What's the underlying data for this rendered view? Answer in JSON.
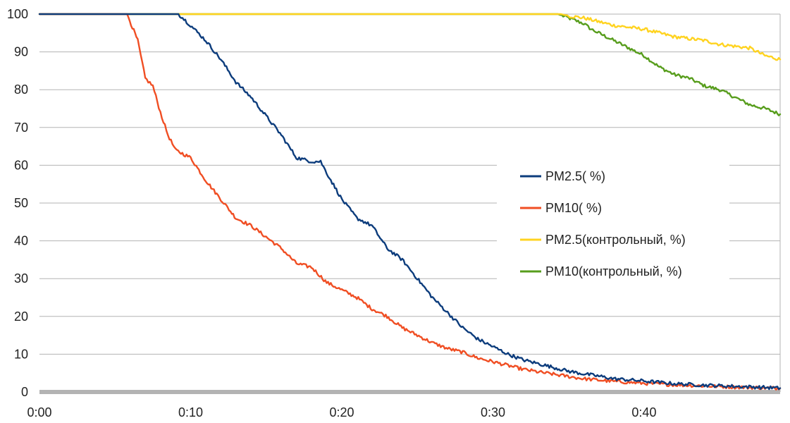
{
  "chart_data": {
    "type": "line",
    "title": "",
    "xlabel": "",
    "ylabel": "",
    "xlim": [
      0,
      49
    ],
    "ylim": [
      0,
      100
    ],
    "grid": true,
    "legend_position": "right",
    "x_tick_values": [
      0,
      10,
      20,
      30,
      40
    ],
    "x_tick_labels": [
      "0:00",
      "0:10",
      "0:20",
      "0:30",
      "0:40"
    ],
    "y_tick_values": [
      0,
      10,
      20,
      30,
      40,
      50,
      60,
      70,
      80,
      90,
      100
    ],
    "y_tick_labels": [
      "0",
      "10",
      "20",
      "30",
      "40",
      "50",
      "60",
      "70",
      "80",
      "90",
      "100"
    ],
    "series": [
      {
        "name": "PM2.5( %)",
        "color": "#0c3c7c",
        "x": [
          0,
          9.2,
          10,
          11,
          12,
          13,
          14,
          15,
          16,
          17,
          18,
          18.6,
          19,
          20,
          21,
          22,
          23,
          24,
          25,
          26,
          27,
          28,
          29,
          30,
          31,
          32,
          33,
          34,
          35,
          36,
          37,
          38,
          40,
          42,
          44,
          46,
          48,
          49
        ],
        "y": [
          100,
          100,
          97,
          93,
          88,
          82,
          78,
          73,
          68,
          62,
          61,
          61,
          58,
          51,
          46,
          44,
          38,
          35,
          30,
          25,
          21,
          17,
          14,
          12,
          10,
          8.5,
          7.5,
          6.5,
          5.5,
          4.8,
          4.2,
          3.5,
          2.9,
          2.2,
          1.8,
          1.5,
          1.2,
          1
        ]
      },
      {
        "name": "PM10( %)",
        "color": "#f04e23",
        "x": [
          0,
          5.8,
          6.5,
          7,
          7.5,
          8,
          8.5,
          9,
          10,
          11,
          12,
          13,
          14,
          15,
          16,
          17,
          18,
          19,
          20,
          21,
          22,
          23,
          24,
          25,
          26,
          27,
          28,
          29,
          30,
          31,
          32,
          33,
          34,
          36,
          38,
          40,
          42,
          44,
          46,
          48,
          49
        ],
        "y": [
          100,
          100,
          93,
          83,
          81,
          74,
          68,
          64,
          62,
          56,
          51,
          46,
          44,
          41,
          38,
          34,
          33,
          29,
          27,
          25,
          22,
          20,
          17,
          15,
          13,
          11.5,
          10.5,
          9,
          8,
          7,
          6,
          5.3,
          4.7,
          3.5,
          2.8,
          2.3,
          1.9,
          1.6,
          1.3,
          1.1,
          1
        ]
      },
      {
        "name": "PM2.5(контрольный, %)",
        "color": "#ffd320",
        "x": [
          0,
          34.5,
          35,
          36,
          37,
          38,
          39,
          40,
          41,
          42,
          43,
          44,
          45,
          46,
          47,
          48,
          49
        ],
        "y": [
          100,
          100,
          99.5,
          99,
          98,
          97,
          96.5,
          96,
          95,
          94,
          93.5,
          93,
          92,
          91.5,
          91,
          89,
          88
        ]
      },
      {
        "name": "PM10(контрольный, %)",
        "color": "#579d1c",
        "x": [
          0,
          34.3,
          35,
          36,
          36.5,
          37,
          38,
          39,
          40,
          41,
          42,
          43,
          44,
          45,
          46,
          47,
          48,
          49
        ],
        "y": [
          100,
          100,
          99,
          97.5,
          96,
          95,
          93,
          91,
          89,
          86,
          84,
          83,
          81,
          80,
          78,
          76,
          75,
          73.5
        ]
      }
    ]
  }
}
